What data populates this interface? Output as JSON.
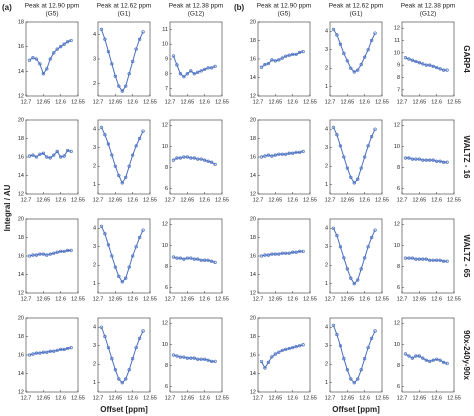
{
  "figure": {
    "ylabel": "Integral / AU",
    "row_labels": [
      "GARP4",
      "WALTZ - 16",
      "WALTZ - 65",
      "90x-240y-90x"
    ],
    "groups": [
      {
        "label": "(a)",
        "xlabel": "Offset [ppm]",
        "column_titles": [
          {
            "title": "Peak at 12.90 ppm",
            "subtitle": "(G5)"
          },
          {
            "title": "Peak at 12.62 ppm",
            "subtitle": "(G1)"
          },
          {
            "title": "Peak at 12.38 ppm",
            "subtitle": "(G12)"
          }
        ]
      },
      {
        "label": "(b)",
        "xlabel": "Offset [ppm]",
        "column_titles": [
          {
            "title": "Peak at 12.90 ppm",
            "subtitle": "(G5)"
          },
          {
            "title": "Peak at 12.62 ppm",
            "subtitle": "(G1)"
          },
          {
            "title": "Peak at 12.38 ppm",
            "subtitle": "(G12)"
          }
        ]
      }
    ]
  },
  "chart_data": [
    {
      "type": "line",
      "color": "#4a6fc0",
      "xlim": [
        12.7,
        12.55
      ],
      "xticks": [
        12.7,
        12.65,
        12.6,
        12.55
      ],
      "ylim": [
        12,
        18
      ],
      "yticks": [
        12,
        14,
        16,
        18
      ],
      "x": [
        12.69,
        12.68,
        12.67,
        12.66,
        12.65,
        12.64,
        12.63,
        12.62,
        12.61,
        12.6,
        12.59,
        12.58,
        12.57
      ],
      "values": [
        14.9,
        15.1,
        15.0,
        14.6,
        13.8,
        14.2,
        15.0,
        15.5,
        15.8,
        16.0,
        16.2,
        16.4,
        16.5
      ]
    },
    {
      "type": "line",
      "color": "#4a6fc0",
      "xlim": [
        12.7,
        12.55
      ],
      "xticks": [
        12.7,
        12.65,
        12.6,
        12.55
      ],
      "ylim": [
        1.5,
        4.5
      ],
      "yticks": [
        2,
        3,
        4
      ],
      "x": [
        12.69,
        12.68,
        12.67,
        12.66,
        12.65,
        12.64,
        12.63,
        12.62,
        12.61,
        12.6,
        12.59,
        12.58,
        12.57
      ],
      "values": [
        4.2,
        3.8,
        3.3,
        2.8,
        2.3,
        1.9,
        1.7,
        1.9,
        2.4,
        2.9,
        3.4,
        3.8,
        4.1
      ]
    },
    {
      "type": "line",
      "color": "#4a6fc0",
      "xlim": [
        12.7,
        12.55
      ],
      "xticks": [
        12.7,
        12.65,
        12.6,
        12.55
      ],
      "ylim": [
        6.5,
        11.5
      ],
      "yticks": [
        7,
        8,
        9,
        10,
        11
      ],
      "x": [
        12.69,
        12.68,
        12.67,
        12.66,
        12.65,
        12.64,
        12.63,
        12.62,
        12.61,
        12.6,
        12.59,
        12.58,
        12.57
      ],
      "values": [
        9.2,
        8.6,
        8.0,
        7.8,
        8.0,
        8.2,
        8.0,
        8.1,
        8.2,
        8.3,
        8.4,
        8.4,
        8.5
      ]
    },
    {
      "type": "line",
      "color": "#4a6fc0",
      "xlim": [
        12.7,
        12.55
      ],
      "xticks": [
        12.7,
        12.65,
        12.6,
        12.55
      ],
      "ylim": [
        12,
        20
      ],
      "yticks": [
        12,
        14,
        16,
        18,
        20
      ],
      "x": [
        12.69,
        12.68,
        12.67,
        12.66,
        12.65,
        12.64,
        12.63,
        12.62,
        12.61,
        12.6,
        12.59,
        12.58,
        12.57
      ],
      "values": [
        16.1,
        16.2,
        16.0,
        16.3,
        16.4,
        16.0,
        15.9,
        16.2,
        16.6,
        16.0,
        16.1,
        16.7,
        16.6
      ]
    },
    {
      "type": "line",
      "color": "#4a6fc0",
      "xlim": [
        12.7,
        12.55
      ],
      "xticks": [
        12.7,
        12.65,
        12.6,
        12.55
      ],
      "ylim": [
        0.5,
        4.5
      ],
      "yticks": [
        1,
        2,
        3,
        4
      ],
      "x": [
        12.69,
        12.68,
        12.67,
        12.66,
        12.65,
        12.64,
        12.63,
        12.62,
        12.61,
        12.6,
        12.59,
        12.58,
        12.57
      ],
      "values": [
        4.1,
        3.7,
        3.2,
        2.6,
        2.0,
        1.5,
        1.1,
        1.4,
        2.0,
        2.6,
        3.1,
        3.5,
        3.9
      ]
    },
    {
      "type": "line",
      "color": "#4a6fc0",
      "xlim": [
        12.7,
        12.55
      ],
      "xticks": [
        12.7,
        12.65,
        12.6,
        12.55
      ],
      "ylim": [
        5.5,
        12.5
      ],
      "yticks": [
        6,
        8,
        10,
        12
      ],
      "x": [
        12.69,
        12.68,
        12.67,
        12.66,
        12.65,
        12.64,
        12.63,
        12.62,
        12.61,
        12.6,
        12.59,
        12.58,
        12.57
      ],
      "values": [
        8.7,
        8.9,
        8.9,
        9.0,
        9.0,
        8.9,
        8.9,
        8.8,
        8.8,
        8.7,
        8.6,
        8.5,
        8.3
      ]
    },
    {
      "type": "line",
      "color": "#4a6fc0",
      "xlim": [
        12.7,
        12.55
      ],
      "xticks": [
        12.7,
        12.65,
        12.6,
        12.55
      ],
      "ylim": [
        12,
        20
      ],
      "yticks": [
        12,
        14,
        16,
        18,
        20
      ],
      "x": [
        12.69,
        12.68,
        12.67,
        12.66,
        12.65,
        12.64,
        12.63,
        12.62,
        12.61,
        12.6,
        12.59,
        12.58,
        12.57
      ],
      "values": [
        16.0,
        16.1,
        16.1,
        16.2,
        16.2,
        16.1,
        16.2,
        16.3,
        16.4,
        16.5,
        16.5,
        16.6,
        16.6
      ]
    },
    {
      "type": "line",
      "color": "#4a6fc0",
      "xlim": [
        12.7,
        12.55
      ],
      "xticks": [
        12.7,
        12.65,
        12.6,
        12.55
      ],
      "ylim": [
        0.5,
        4.5
      ],
      "yticks": [
        1,
        2,
        3,
        4
      ],
      "x": [
        12.69,
        12.68,
        12.67,
        12.66,
        12.65,
        12.64,
        12.63,
        12.62,
        12.61,
        12.6,
        12.59,
        12.58,
        12.57
      ],
      "values": [
        4.1,
        3.7,
        3.1,
        2.5,
        1.9,
        1.4,
        1.1,
        1.3,
        1.9,
        2.5,
        3.0,
        3.5,
        3.9
      ]
    },
    {
      "type": "line",
      "color": "#4a6fc0",
      "xlim": [
        12.7,
        12.55
      ],
      "xticks": [
        12.7,
        12.65,
        12.6,
        12.55
      ],
      "ylim": [
        5.5,
        12.5
      ],
      "yticks": [
        6,
        8,
        10,
        12
      ],
      "x": [
        12.69,
        12.68,
        12.67,
        12.66,
        12.65,
        12.64,
        12.63,
        12.62,
        12.61,
        12.6,
        12.59,
        12.58,
        12.57
      ],
      "values": [
        8.9,
        8.8,
        8.8,
        8.7,
        8.8,
        8.8,
        8.7,
        8.7,
        8.6,
        8.6,
        8.6,
        8.5,
        8.4
      ]
    },
    {
      "type": "line",
      "color": "#4a6fc0",
      "xlim": [
        12.7,
        12.55
      ],
      "xticks": [
        12.7,
        12.65,
        12.6,
        12.55
      ],
      "ylim": [
        12,
        20
      ],
      "yticks": [
        12,
        14,
        16,
        18,
        20
      ],
      "x": [
        12.69,
        12.68,
        12.67,
        12.66,
        12.65,
        12.64,
        12.63,
        12.62,
        12.61,
        12.6,
        12.59,
        12.58,
        12.57
      ],
      "values": [
        16.0,
        16.1,
        16.2,
        16.2,
        16.3,
        16.3,
        16.4,
        16.4,
        16.5,
        16.6,
        16.6,
        16.7,
        16.8
      ]
    },
    {
      "type": "line",
      "color": "#4a6fc0",
      "xlim": [
        12.7,
        12.55
      ],
      "xticks": [
        12.7,
        12.65,
        12.6,
        12.55
      ],
      "ylim": [
        0.5,
        4.5
      ],
      "yticks": [
        1,
        2,
        3,
        4
      ],
      "x": [
        12.69,
        12.68,
        12.67,
        12.66,
        12.65,
        12.64,
        12.63,
        12.62,
        12.61,
        12.6,
        12.59,
        12.58,
        12.57
      ],
      "values": [
        4.0,
        3.5,
        2.9,
        2.3,
        1.7,
        1.2,
        1.0,
        1.2,
        1.7,
        2.3,
        2.9,
        3.4,
        3.8
      ]
    },
    {
      "type": "line",
      "color": "#4a6fc0",
      "xlim": [
        12.7,
        12.55
      ],
      "xticks": [
        12.7,
        12.65,
        12.6,
        12.55
      ],
      "ylim": [
        5.5,
        12.5
      ],
      "yticks": [
        6,
        8,
        10,
        12
      ],
      "x": [
        12.69,
        12.68,
        12.67,
        12.66,
        12.65,
        12.64,
        12.63,
        12.62,
        12.61,
        12.6,
        12.59,
        12.58,
        12.57
      ],
      "values": [
        9.0,
        8.9,
        8.8,
        8.8,
        8.7,
        8.7,
        8.7,
        8.6,
        8.6,
        8.6,
        8.5,
        8.4,
        8.4
      ]
    },
    {
      "type": "line",
      "color": "#4a6fc0",
      "xlim": [
        12.7,
        12.55
      ],
      "xticks": [
        12.7,
        12.65,
        12.6,
        12.55
      ],
      "ylim": [
        12,
        20
      ],
      "yticks": [
        12,
        14,
        16,
        18,
        20
      ],
      "x": [
        12.69,
        12.68,
        12.67,
        12.66,
        12.65,
        12.64,
        12.63,
        12.62,
        12.61,
        12.6,
        12.59,
        12.58,
        12.57
      ],
      "values": [
        15.1,
        15.4,
        15.5,
        15.9,
        15.8,
        15.9,
        16.1,
        16.3,
        16.4,
        16.5,
        16.5,
        16.7,
        16.8
      ]
    },
    {
      "type": "line",
      "color": "#4a6fc0",
      "xlim": [
        12.7,
        12.55
      ],
      "xticks": [
        12.7,
        12.65,
        12.6,
        12.55
      ],
      "ylim": [
        0.5,
        4.5
      ],
      "yticks": [
        1,
        2,
        3,
        4
      ],
      "x": [
        12.69,
        12.68,
        12.67,
        12.66,
        12.65,
        12.64,
        12.63,
        12.62,
        12.61,
        12.6,
        12.59,
        12.58,
        12.57
      ],
      "values": [
        4.1,
        3.8,
        3.3,
        2.8,
        2.4,
        2.0,
        1.8,
        1.9,
        2.2,
        2.6,
        3.0,
        3.5,
        3.9
      ]
    },
    {
      "type": "line",
      "color": "#4a6fc0",
      "xlim": [
        12.7,
        12.55
      ],
      "xticks": [
        12.7,
        12.65,
        12.6,
        12.55
      ],
      "ylim": [
        6.5,
        12.5
      ],
      "yticks": [
        7,
        8,
        9,
        10,
        11,
        12
      ],
      "x": [
        12.69,
        12.68,
        12.67,
        12.66,
        12.65,
        12.64,
        12.63,
        12.62,
        12.61,
        12.6,
        12.59,
        12.58,
        12.57
      ],
      "values": [
        9.6,
        9.5,
        9.4,
        9.3,
        9.2,
        9.1,
        9.0,
        9.0,
        8.9,
        8.8,
        8.7,
        8.6,
        8.6
      ]
    },
    {
      "type": "line",
      "color": "#4a6fc0",
      "xlim": [
        12.7,
        12.55
      ],
      "xticks": [
        12.7,
        12.65,
        12.6,
        12.55
      ],
      "ylim": [
        12,
        20
      ],
      "yticks": [
        12,
        14,
        16,
        18,
        20
      ],
      "x": [
        12.69,
        12.68,
        12.67,
        12.66,
        12.65,
        12.64,
        12.63,
        12.62,
        12.61,
        12.6,
        12.59,
        12.58,
        12.57
      ],
      "values": [
        16.0,
        16.1,
        16.2,
        16.1,
        16.2,
        16.3,
        16.3,
        16.3,
        16.4,
        16.4,
        16.5,
        16.5,
        16.6
      ]
    },
    {
      "type": "line",
      "color": "#4a6fc0",
      "xlim": [
        12.7,
        12.55
      ],
      "xticks": [
        12.7,
        12.65,
        12.6,
        12.55
      ],
      "ylim": [
        0.5,
        4.5
      ],
      "yticks": [
        1,
        2,
        3,
        4
      ],
      "x": [
        12.69,
        12.68,
        12.67,
        12.66,
        12.65,
        12.64,
        12.63,
        12.62,
        12.61,
        12.6,
        12.59,
        12.58,
        12.57
      ],
      "values": [
        4.1,
        3.7,
        3.1,
        2.5,
        1.9,
        1.4,
        1.1,
        1.3,
        1.9,
        2.5,
        3.1,
        3.6,
        4.0
      ]
    },
    {
      "type": "line",
      "color": "#4a6fc0",
      "xlim": [
        12.7,
        12.55
      ],
      "xticks": [
        12.7,
        12.65,
        12.6,
        12.55
      ],
      "ylim": [
        5.5,
        12.5
      ],
      "yticks": [
        6,
        8,
        10,
        12
      ],
      "x": [
        12.69,
        12.68,
        12.67,
        12.66,
        12.65,
        12.64,
        12.63,
        12.62,
        12.61,
        12.6,
        12.59,
        12.58,
        12.57
      ],
      "values": [
        8.9,
        8.9,
        8.8,
        8.8,
        8.8,
        8.7,
        8.7,
        8.7,
        8.7,
        8.6,
        8.6,
        8.5,
        8.5
      ]
    },
    {
      "type": "line",
      "color": "#4a6fc0",
      "xlim": [
        12.7,
        12.55
      ],
      "xticks": [
        12.7,
        12.65,
        12.6,
        12.55
      ],
      "ylim": [
        12,
        20
      ],
      "yticks": [
        12,
        14,
        16,
        18,
        20
      ],
      "x": [
        12.69,
        12.68,
        12.67,
        12.66,
        12.65,
        12.64,
        12.63,
        12.62,
        12.61,
        12.6,
        12.59,
        12.58,
        12.57
      ],
      "values": [
        16.0,
        16.1,
        16.1,
        16.2,
        16.2,
        16.2,
        16.3,
        16.3,
        16.3,
        16.4,
        16.4,
        16.5,
        16.5
      ]
    },
    {
      "type": "line",
      "color": "#4a6fc0",
      "xlim": [
        12.7,
        12.55
      ],
      "xticks": [
        12.7,
        12.65,
        12.6,
        12.55
      ],
      "ylim": [
        0.5,
        4.5
      ],
      "yticks": [
        1,
        2,
        3,
        4
      ],
      "x": [
        12.69,
        12.68,
        12.67,
        12.66,
        12.65,
        12.64,
        12.63,
        12.62,
        12.61,
        12.6,
        12.59,
        12.58,
        12.57
      ],
      "values": [
        4.0,
        3.6,
        3.0,
        2.4,
        1.8,
        1.3,
        1.0,
        1.2,
        1.8,
        2.4,
        3.0,
        3.5,
        3.9
      ]
    },
    {
      "type": "line",
      "color": "#4a6fc0",
      "xlim": [
        12.7,
        12.55
      ],
      "xticks": [
        12.7,
        12.65,
        12.6,
        12.55
      ],
      "ylim": [
        5.5,
        12.5
      ],
      "yticks": [
        6,
        8,
        10,
        12
      ],
      "x": [
        12.69,
        12.68,
        12.67,
        12.66,
        12.65,
        12.64,
        12.63,
        12.62,
        12.61,
        12.6,
        12.59,
        12.58,
        12.57
      ],
      "values": [
        8.8,
        8.8,
        8.8,
        8.7,
        8.7,
        8.7,
        8.7,
        8.6,
        8.6,
        8.6,
        8.6,
        8.5,
        8.5
      ]
    },
    {
      "type": "line",
      "color": "#4a6fc0",
      "xlim": [
        12.7,
        12.55
      ],
      "xticks": [
        12.7,
        12.65,
        12.6,
        12.55
      ],
      "ylim": [
        12,
        20
      ],
      "yticks": [
        12,
        14,
        16,
        18,
        20
      ],
      "x": [
        12.69,
        12.68,
        12.67,
        12.66,
        12.65,
        12.64,
        12.63,
        12.62,
        12.61,
        12.6,
        12.59,
        12.58,
        12.57
      ],
      "values": [
        15.3,
        14.6,
        15.2,
        15.8,
        16.1,
        16.3,
        16.5,
        16.6,
        16.7,
        16.8,
        16.9,
        17.0,
        17.1
      ]
    },
    {
      "type": "line",
      "color": "#4a6fc0",
      "xlim": [
        12.7,
        12.55
      ],
      "xticks": [
        12.7,
        12.65,
        12.6,
        12.55
      ],
      "ylim": [
        0.5,
        4.5
      ],
      "yticks": [
        1,
        2,
        3,
        4
      ],
      "x": [
        12.69,
        12.68,
        12.67,
        12.66,
        12.65,
        12.64,
        12.63,
        12.62,
        12.61,
        12.6,
        12.59,
        12.58,
        12.57
      ],
      "values": [
        4.1,
        3.6,
        3.0,
        2.3,
        1.7,
        1.2,
        1.0,
        1.2,
        1.7,
        2.3,
        2.9,
        3.4,
        3.8
      ]
    },
    {
      "type": "line",
      "color": "#4a6fc0",
      "xlim": [
        12.7,
        12.55
      ],
      "xticks": [
        12.7,
        12.65,
        12.6,
        12.55
      ],
      "ylim": [
        5.5,
        12.5
      ],
      "yticks": [
        6,
        8,
        10,
        12
      ],
      "x": [
        12.69,
        12.68,
        12.67,
        12.66,
        12.65,
        12.64,
        12.63,
        12.62,
        12.61,
        12.6,
        12.59,
        12.58,
        12.57
      ],
      "values": [
        9.1,
        8.9,
        8.7,
        8.9,
        8.9,
        8.7,
        8.5,
        8.4,
        8.5,
        8.6,
        8.5,
        8.3,
        8.2
      ]
    }
  ]
}
